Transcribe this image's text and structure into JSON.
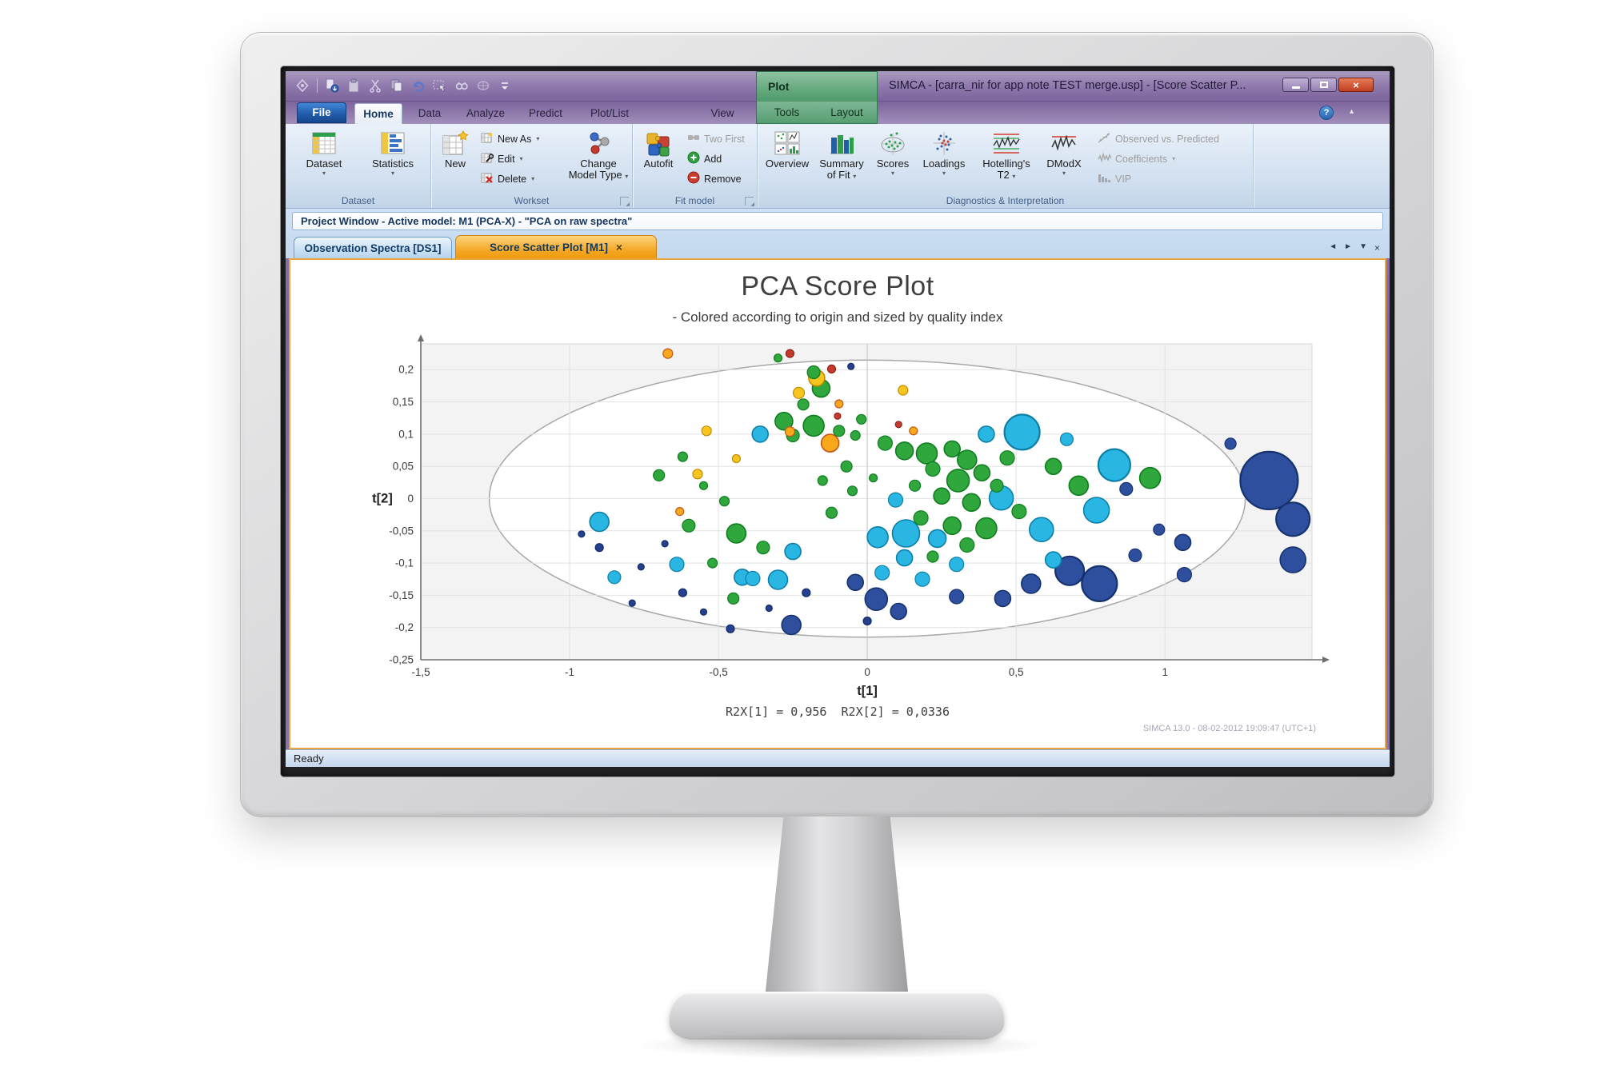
{
  "window": {
    "title": "SIMCA - [carra_nir for app note TEST merge.usp] - [Score Scatter P...",
    "status": "Ready"
  },
  "tabs": {
    "contextual": "Plot",
    "file": "File",
    "home": "Home",
    "data": "Data",
    "analyze": "Analyze",
    "predict": "Predict",
    "plotlist": "Plot/List",
    "view": "View",
    "tools": "Tools",
    "layout": "Layout"
  },
  "ribbon": {
    "dataset_group": {
      "label": "Dataset",
      "dataset": "Dataset",
      "statistics": "Statistics"
    },
    "workset_group": {
      "label": "Workset",
      "new": "New",
      "new_as": "New As",
      "edit": "Edit",
      "delete": "Delete",
      "change_model_1": "Change",
      "change_model_2": "Model Type"
    },
    "fit_group": {
      "label": "Fit model",
      "autofit": "Autofit",
      "two_first": "Two First",
      "add": "Add",
      "remove": "Remove"
    },
    "diag_group": {
      "label": "Diagnostics & Interpretation",
      "overview": "Overview",
      "summary_1": "Summary",
      "summary_2": "of Fit",
      "scores": "Scores",
      "loadings": "Loadings",
      "hotelling_1": "Hotelling's",
      "hotelling_2": "T2",
      "dmodx": "DModX",
      "obs_pred": "Observed vs. Predicted",
      "coefficients": "Coefficients",
      "vip": "VIP"
    }
  },
  "project_bar": {
    "text": "Project Window - Active model: M1 (PCA-X) - \"PCA on raw spectra\""
  },
  "doc_tabs": {
    "tab1": "Observation Spectra [DS1]",
    "tab2": "Score Scatter Plot [M1]"
  },
  "plot": {
    "title": "PCA Score Plot",
    "subtitle": "- Colored according to origin and sized by quality index",
    "r2x": "R2X[1] = 0,956  R2X[2] = 0,0336",
    "watermark": "SIMCA 13.0 - 08-02-2012 19:09:47 (UTC+1)"
  },
  "icons": {
    "qat": [
      "app-icon",
      "import-icon",
      "clipboard-icon",
      "cut-icon",
      "copy-icon",
      "undo-icon",
      "select-icon",
      "find-icon",
      "options-icon",
      "more-icon"
    ],
    "window": [
      "minimize-icon",
      "maximize-icon",
      "close-icon"
    ],
    "tab_controls": [
      "prev-tab-icon",
      "next-tab-icon",
      "tab-list-icon",
      "close-tab-icon"
    ],
    "help": "help-icon"
  },
  "chart_data": {
    "type": "scatter",
    "title": "PCA Score Plot",
    "subtitle": "- Colored according to origin and sized by quality index",
    "xlabel": "t[1]",
    "ylabel": "t[2]",
    "xlim": [
      -1.5,
      1.494
    ],
    "ylim": [
      -0.25,
      0.24
    ],
    "grid": true,
    "legend_position": "none",
    "xticks": [
      {
        "v": -1.5,
        "l": "-1,5"
      },
      {
        "v": -1,
        "l": "-1"
      },
      {
        "v": -0.5,
        "l": "-0,5"
      },
      {
        "v": 0,
        "l": "0"
      },
      {
        "v": 0.5,
        "l": "0,5"
      },
      {
        "v": 1,
        "l": "1"
      }
    ],
    "yticks": [
      {
        "v": 0.2,
        "l": "0,2"
      },
      {
        "v": 0.15,
        "l": "0,15"
      },
      {
        "v": 0.1,
        "l": "0,1"
      },
      {
        "v": 0.05,
        "l": "0,05"
      },
      {
        "v": 0,
        "l": "0"
      },
      {
        "v": -0.05,
        "l": "-0,05"
      },
      {
        "v": -0.1,
        "l": "-0,1"
      },
      {
        "v": -0.15,
        "l": "-0,15"
      },
      {
        "v": -0.2,
        "l": "-0,2"
      },
      {
        "v": -0.25,
        "l": "-0,25"
      }
    ],
    "ellipse": {
      "cx": 0,
      "cy": 0,
      "rx": 1.27,
      "ry": 0.215
    },
    "colors": {
      "green": {
        "fill": "#2fa73c",
        "stroke": "#0f7d1f"
      },
      "cyan": {
        "fill": "#2ab6e3",
        "stroke": "#0c7fa6"
      },
      "blue": {
        "fill": "#2d4f9e",
        "stroke": "#16326e"
      },
      "navy": {
        "fill": "#25408f",
        "stroke": "#122a66"
      },
      "orange": {
        "fill": "#f7a81b",
        "stroke": "#c2571a"
      },
      "yellow": {
        "fill": "#f7c51e",
        "stroke": "#c28a00"
      },
      "red": {
        "fill": "#c43a2c",
        "stroke": "#8e2117"
      }
    },
    "points": [
      [
        -0.26,
        0.225,
        5,
        "red"
      ],
      [
        -0.12,
        0.201,
        5,
        "red"
      ],
      [
        -0.1,
        0.128,
        4,
        "red"
      ],
      [
        0.105,
        0.115,
        4,
        "red"
      ],
      [
        -0.67,
        0.225,
        6,
        "orange"
      ],
      [
        -0.17,
        0.187,
        10,
        "yellow"
      ],
      [
        -0.23,
        0.164,
        7,
        "yellow"
      ],
      [
        0.12,
        0.168,
        6,
        "yellow"
      ],
      [
        -0.54,
        0.105,
        6,
        "yellow"
      ],
      [
        -0.26,
        0.104,
        6,
        "orange"
      ],
      [
        -0.125,
        0.086,
        11,
        "orange"
      ],
      [
        -0.57,
        0.038,
        6,
        "yellow"
      ],
      [
        -0.63,
        -0.02,
        5,
        "orange"
      ],
      [
        -0.44,
        0.062,
        5,
        "yellow"
      ],
      [
        -0.095,
        0.147,
        5,
        "orange"
      ],
      [
        0.155,
        0.105,
        5,
        "orange"
      ],
      [
        -0.3,
        0.218,
        5,
        "green"
      ],
      [
        -0.18,
        0.196,
        8,
        "green"
      ],
      [
        -0.155,
        0.171,
        11,
        "green"
      ],
      [
        -0.215,
        0.146,
        7,
        "green"
      ],
      [
        -0.28,
        0.12,
        11,
        "green"
      ],
      [
        -0.18,
        0.113,
        13,
        "green"
      ],
      [
        -0.25,
        0.098,
        8,
        "green"
      ],
      [
        -0.095,
        0.105,
        7,
        "green"
      ],
      [
        -0.04,
        0.098,
        6,
        "green"
      ],
      [
        -0.02,
        0.123,
        6,
        "green"
      ],
      [
        0.06,
        0.086,
        9,
        "green"
      ],
      [
        0.125,
        0.074,
        11,
        "green"
      ],
      [
        0.2,
        0.07,
        13,
        "green"
      ],
      [
        0.285,
        0.077,
        10,
        "green"
      ],
      [
        0.335,
        0.06,
        12,
        "green"
      ],
      [
        0.22,
        0.046,
        9,
        "green"
      ],
      [
        0.305,
        0.028,
        14,
        "green"
      ],
      [
        0.385,
        0.04,
        10,
        "green"
      ],
      [
        0.16,
        0.02,
        7,
        "green"
      ],
      [
        0.25,
        0.004,
        10,
        "green"
      ],
      [
        0.35,
        -0.006,
        11,
        "green"
      ],
      [
        0.435,
        0.02,
        8,
        "green"
      ],
      [
        0.47,
        0.063,
        9,
        "green"
      ],
      [
        0.625,
        0.05,
        10,
        "green"
      ],
      [
        0.71,
        0.02,
        12,
        "green"
      ],
      [
        0.95,
        0.032,
        13,
        "green"
      ],
      [
        0.18,
        -0.03,
        9,
        "green"
      ],
      [
        0.285,
        -0.042,
        11,
        "green"
      ],
      [
        0.4,
        -0.046,
        13,
        "green"
      ],
      [
        0.335,
        -0.072,
        9,
        "green"
      ],
      [
        0.22,
        -0.09,
        7,
        "green"
      ],
      [
        -0.62,
        0.065,
        6,
        "green"
      ],
      [
        -0.7,
        0.036,
        7,
        "green"
      ],
      [
        -0.55,
        0.02,
        5,
        "green"
      ],
      [
        -0.48,
        -0.004,
        6,
        "green"
      ],
      [
        -0.6,
        -0.042,
        8,
        "green"
      ],
      [
        -0.44,
        -0.054,
        12,
        "green"
      ],
      [
        -0.35,
        -0.076,
        8,
        "green"
      ],
      [
        -0.52,
        -0.1,
        6,
        "green"
      ],
      [
        -0.45,
        -0.155,
        7,
        "green"
      ],
      [
        -0.07,
        0.05,
        7,
        "green"
      ],
      [
        -0.15,
        0.028,
        6,
        "green"
      ],
      [
        -0.05,
        0.012,
        6,
        "green"
      ],
      [
        -0.12,
        -0.022,
        7,
        "green"
      ],
      [
        0.02,
        0.032,
        5,
        "green"
      ],
      [
        0.51,
        -0.02,
        9,
        "green"
      ],
      [
        -0.36,
        0.1,
        10,
        "cyan"
      ],
      [
        0.52,
        0.103,
        22,
        "cyan"
      ],
      [
        0.45,
        0.001,
        15,
        "cyan"
      ],
      [
        0.585,
        -0.048,
        15,
        "cyan"
      ],
      [
        0.83,
        0.052,
        20,
        "cyan"
      ],
      [
        0.77,
        -0.018,
        16,
        "cyan"
      ],
      [
        0.13,
        -0.054,
        17,
        "cyan"
      ],
      [
        0.035,
        -0.06,
        13,
        "cyan"
      ],
      [
        0.235,
        -0.062,
        11,
        "cyan"
      ],
      [
        0.125,
        -0.092,
        10,
        "cyan"
      ],
      [
        0.05,
        -0.115,
        9,
        "cyan"
      ],
      [
        0.3,
        -0.102,
        9,
        "cyan"
      ],
      [
        -0.25,
        -0.082,
        10,
        "cyan"
      ],
      [
        -0.3,
        -0.126,
        12,
        "cyan"
      ],
      [
        -0.385,
        -0.124,
        9,
        "cyan"
      ],
      [
        0.4,
        0.1,
        10,
        "cyan"
      ],
      [
        0.67,
        0.092,
        8,
        "cyan"
      ],
      [
        -0.9,
        -0.036,
        12,
        "cyan"
      ],
      [
        -0.85,
        -0.122,
        8,
        "cyan"
      ],
      [
        -0.64,
        -0.102,
        9,
        "cyan"
      ],
      [
        -0.42,
        -0.122,
        10,
        "cyan"
      ],
      [
        0.095,
        -0.002,
        9,
        "cyan"
      ],
      [
        0.625,
        -0.095,
        10,
        "cyan"
      ],
      [
        0.185,
        -0.125,
        9,
        "cyan"
      ],
      [
        1.35,
        0.028,
        36,
        "blue"
      ],
      [
        1.43,
        -0.032,
        21,
        "blue"
      ],
      [
        1.43,
        -0.095,
        16,
        "blue"
      ],
      [
        1.06,
        -0.068,
        10,
        "blue"
      ],
      [
        1.065,
        -0.118,
        9,
        "blue"
      ],
      [
        0.98,
        -0.048,
        7,
        "blue"
      ],
      [
        0.9,
        -0.088,
        8,
        "blue"
      ],
      [
        0.68,
        -0.112,
        18,
        "blue"
      ],
      [
        0.78,
        -0.132,
        22,
        "blue"
      ],
      [
        0.55,
        -0.132,
        12,
        "blue"
      ],
      [
        0.455,
        -0.155,
        10,
        "blue"
      ],
      [
        0.03,
        -0.156,
        14,
        "blue"
      ],
      [
        -0.04,
        -0.13,
        10,
        "blue"
      ],
      [
        0.105,
        -0.175,
        10,
        "blue"
      ],
      [
        -0.255,
        -0.196,
        12,
        "blue"
      ],
      [
        0.3,
        -0.152,
        9,
        "blue"
      ],
      [
        1.22,
        0.085,
        7,
        "blue"
      ],
      [
        0.87,
        0.015,
        8,
        "blue"
      ],
      [
        -0.9,
        -0.076,
        5,
        "navy"
      ],
      [
        -0.96,
        -0.055,
        4,
        "navy"
      ],
      [
        -0.76,
        -0.106,
        4,
        "navy"
      ],
      [
        -0.62,
        -0.146,
        5,
        "navy"
      ],
      [
        -0.55,
        -0.176,
        4,
        "navy"
      ],
      [
        -0.79,
        -0.162,
        4,
        "navy"
      ],
      [
        -0.46,
        -0.202,
        5,
        "navy"
      ],
      [
        -0.205,
        -0.146,
        5,
        "navy"
      ],
      [
        -0.055,
        0.205,
        4,
        "navy"
      ],
      [
        -0.68,
        -0.07,
        4,
        "navy"
      ],
      [
        -0.33,
        -0.17,
        4,
        "navy"
      ],
      [
        0.0,
        -0.19,
        5,
        "navy"
      ]
    ]
  }
}
